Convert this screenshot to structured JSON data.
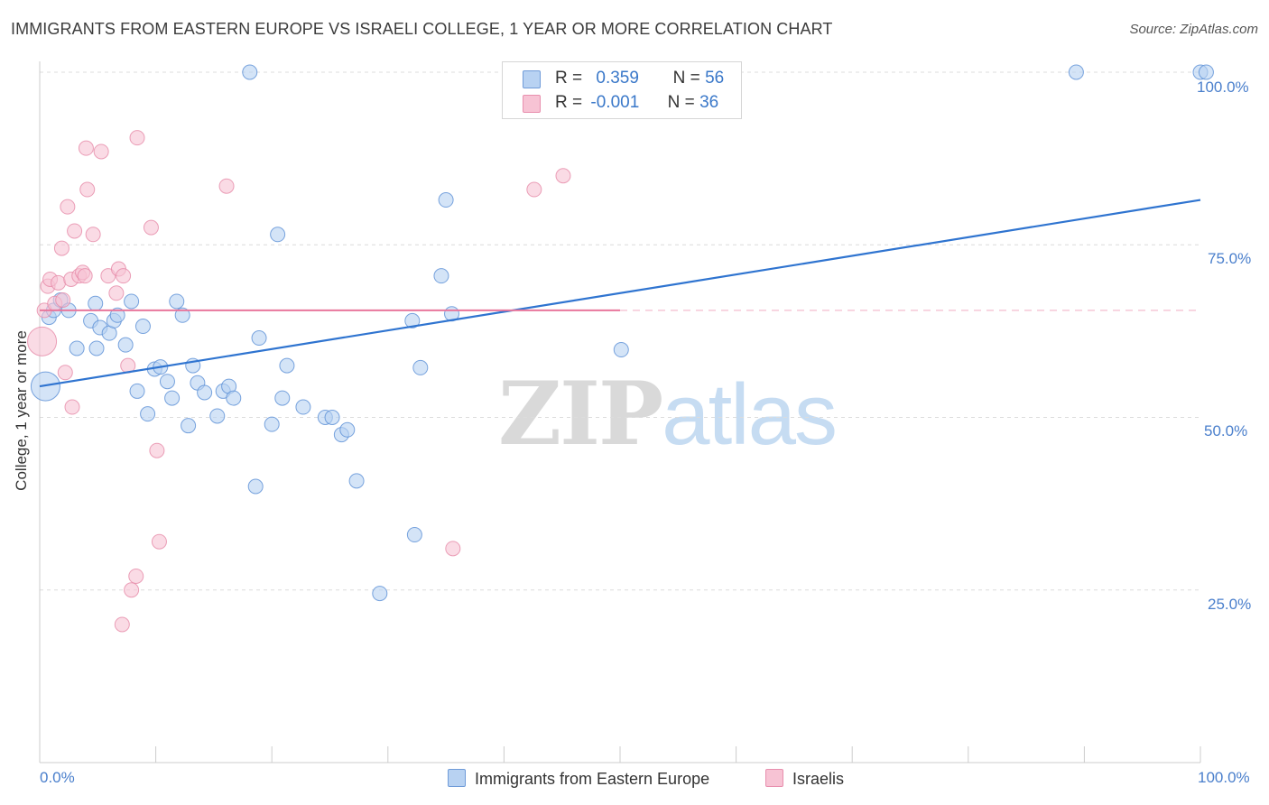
{
  "title": "IMMIGRANTS FROM EASTERN EUROPE VS ISRAELI COLLEGE, 1 YEAR OR MORE CORRELATION CHART",
  "source": "Source: ZipAtlas.com",
  "watermark": {
    "zip": "ZIP",
    "atlas": "atlas"
  },
  "legend": {
    "r_label": "R =",
    "n_label": "N =",
    "rows": [
      {
        "r": "0.359",
        "n": "56"
      },
      {
        "r": "-0.001",
        "n": "36"
      }
    ]
  },
  "bottom_legend": [
    "Immigrants from Eastern Europe",
    "Israelis"
  ],
  "colors": {
    "blue_fill": "#b8d2f2",
    "blue_stroke": "#5a8fd6",
    "blue_line": "#2f74d0",
    "pink_fill": "#f7c3d4",
    "pink_stroke": "#e68aa8",
    "pink_line": "#e8779c",
    "grid": "#dcdcdc",
    "tick_text": "#4a7fcc"
  },
  "chart_data": {
    "type": "scatter",
    "title": "IMMIGRANTS FROM EASTERN EUROPE VS ISRAELI COLLEGE, 1 YEAR OR MORE CORRELATION CHART",
    "xlabel": "",
    "ylabel": "College, 1 year or more",
    "xlim": [
      0,
      100
    ],
    "ylim": [
      0,
      102
    ],
    "x_tick_labels": [
      "0.0%",
      "100.0%"
    ],
    "y_ticks": [
      25,
      50,
      75,
      100
    ],
    "y_tick_labels": [
      "25.0%",
      "50.0%",
      "75.0%",
      "100.0%"
    ],
    "grid": true,
    "legend_position": "top-center",
    "series": [
      {
        "name": "Immigrants from Eastern Europe",
        "color": "#b8d2f2",
        "points": [
          [
            0.5,
            54.5
          ],
          [
            0.8,
            64.5
          ],
          [
            1.2,
            65.5
          ],
          [
            1.8,
            67.0
          ],
          [
            2.5,
            65.5
          ],
          [
            3.2,
            60.0
          ],
          [
            4.4,
            64.0
          ],
          [
            4.8,
            66.5
          ],
          [
            4.9,
            60.0
          ],
          [
            5.2,
            63.0
          ],
          [
            6.0,
            62.2
          ],
          [
            6.4,
            64.0
          ],
          [
            6.7,
            64.8
          ],
          [
            7.4,
            60.5
          ],
          [
            7.9,
            66.8
          ],
          [
            8.4,
            53.8
          ],
          [
            8.9,
            63.2
          ],
          [
            9.3,
            50.5
          ],
          [
            9.9,
            57.0
          ],
          [
            10.4,
            57.3
          ],
          [
            11.0,
            55.2
          ],
          [
            11.4,
            52.8
          ],
          [
            11.8,
            66.8
          ],
          [
            12.3,
            64.8
          ],
          [
            12.8,
            48.8
          ],
          [
            13.2,
            57.5
          ],
          [
            13.6,
            55.0
          ],
          [
            14.2,
            53.6
          ],
          [
            15.3,
            50.2
          ],
          [
            15.8,
            53.8
          ],
          [
            16.3,
            54.5
          ],
          [
            16.7,
            52.8
          ],
          [
            18.1,
            100.0
          ],
          [
            18.6,
            40.0
          ],
          [
            18.9,
            61.5
          ],
          [
            20.0,
            49.0
          ],
          [
            20.5,
            76.5
          ],
          [
            20.9,
            52.8
          ],
          [
            21.3,
            57.5
          ],
          [
            22.7,
            51.5
          ],
          [
            24.6,
            50.0
          ],
          [
            25.2,
            50.0
          ],
          [
            26.0,
            47.5
          ],
          [
            26.5,
            48.2
          ],
          [
            27.3,
            40.8
          ],
          [
            29.3,
            24.5
          ],
          [
            32.1,
            64.0
          ],
          [
            32.3,
            33.0
          ],
          [
            32.8,
            57.2
          ],
          [
            35.0,
            81.5
          ],
          [
            34.6,
            70.5
          ],
          [
            35.5,
            65.0
          ],
          [
            50.1,
            59.8
          ],
          [
            89.3,
            100.0
          ],
          [
            100.0,
            100.0
          ],
          [
            100.5,
            100.0
          ]
        ]
      },
      {
        "name": "Israelis",
        "color": "#f7c3d4",
        "points": [
          [
            0.2,
            61.0
          ],
          [
            0.4,
            65.5
          ],
          [
            0.7,
            69.0
          ],
          [
            0.9,
            70.0
          ],
          [
            1.3,
            66.5
          ],
          [
            1.6,
            69.5
          ],
          [
            1.9,
            74.5
          ],
          [
            2.0,
            67.0
          ],
          [
            2.2,
            56.5
          ],
          [
            2.4,
            80.5
          ],
          [
            2.7,
            70.0
          ],
          [
            2.8,
            51.5
          ],
          [
            3.0,
            77.0
          ],
          [
            3.4,
            70.5
          ],
          [
            3.7,
            71.0
          ],
          [
            3.9,
            70.5
          ],
          [
            4.0,
            89.0
          ],
          [
            4.1,
            83.0
          ],
          [
            4.6,
            76.5
          ],
          [
            5.3,
            88.5
          ],
          [
            5.9,
            70.5
          ],
          [
            6.6,
            68.0
          ],
          [
            6.8,
            71.5
          ],
          [
            7.1,
            20.0
          ],
          [
            7.2,
            70.5
          ],
          [
            7.6,
            57.5
          ],
          [
            7.9,
            25.0
          ],
          [
            8.3,
            27.0
          ],
          [
            8.4,
            90.5
          ],
          [
            9.6,
            77.5
          ],
          [
            10.1,
            45.2
          ],
          [
            10.3,
            32.0
          ],
          [
            16.1,
            83.5
          ],
          [
            35.6,
            31.0
          ],
          [
            42.6,
            83.0
          ],
          [
            45.1,
            85.0
          ]
        ]
      }
    ],
    "trend_lines": [
      {
        "name": "Immigrants from Eastern Europe",
        "x": [
          0,
          100
        ],
        "y": [
          54.5,
          81.5
        ],
        "style": "solid"
      },
      {
        "name": "Israelis",
        "x": [
          0,
          50
        ],
        "y": [
          65.5,
          65.5
        ],
        "style": "solid"
      },
      {
        "name": "Israelis",
        "x": [
          50,
          100
        ],
        "y": [
          65.5,
          65.5
        ],
        "style": "dashed"
      }
    ]
  }
}
